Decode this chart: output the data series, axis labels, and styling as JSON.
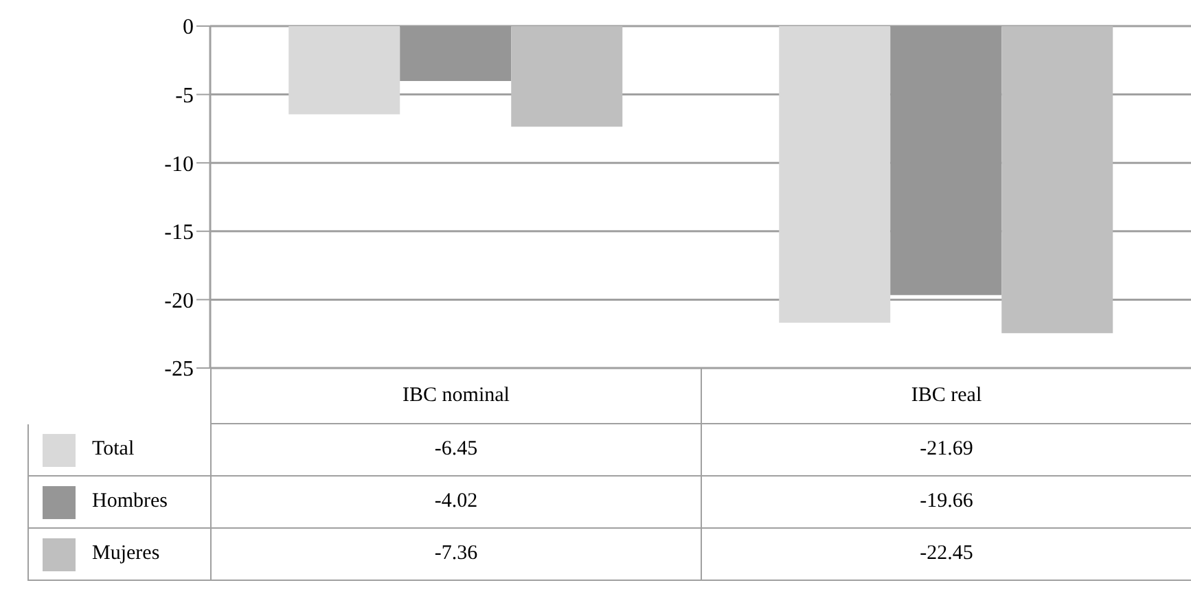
{
  "chart_data": {
    "type": "bar",
    "categories": [
      "IBC nominal",
      "IBC real"
    ],
    "series": [
      {
        "name": "Total",
        "color": "#d9d9d9",
        "values": [
          -6.45,
          -21.69
        ]
      },
      {
        "name": "Hombres",
        "color": "#969696",
        "values": [
          -4.02,
          -19.66
        ]
      },
      {
        "name": "Mujeres",
        "color": "#bfbfbf",
        "values": [
          -7.36,
          -22.45
        ]
      }
    ],
    "ylim": [
      -25,
      0
    ],
    "yticks": [
      -25,
      -20,
      -15,
      -10,
      -5,
      0
    ],
    "grid": "y",
    "legend": "bottom left",
    "data_labels": true
  }
}
